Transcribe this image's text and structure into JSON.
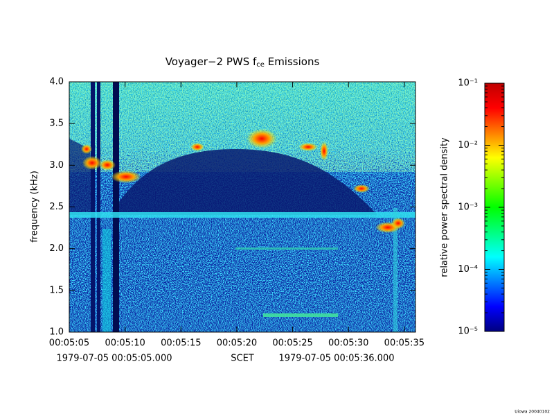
{
  "chart_data": {
    "type": "spectrogram",
    "title": "Voyager−2 PWS f",
    "title_subscript": "ce",
    "title_suffix": " Emissions",
    "y_label": "frequency (kHz)",
    "ylim": [
      1.0,
      4.0
    ],
    "yticks": [
      {
        "value": 1.0,
        "label": "1.0"
      },
      {
        "value": 1.5,
        "label": "1.5"
      },
      {
        "value": 2.0,
        "label": "2.0"
      },
      {
        "value": 2.5,
        "label": "2.5"
      },
      {
        "value": 3.0,
        "label": "3.0"
      },
      {
        "value": 3.5,
        "label": "3.5"
      },
      {
        "value": 4.0,
        "label": "4.0"
      }
    ],
    "xlim": [
      "1979-07-05 00:05:05.000",
      "1979-07-05 00:05:36.000"
    ],
    "x_label": "SCET",
    "xticks": [
      "00:05:05",
      "00:05:10",
      "00:05:15",
      "00:05:20",
      "00:05:25",
      "00:05:30",
      "00:05:35"
    ],
    "colorbar": {
      "label": "relative power spectral density",
      "log_scale": true,
      "lim": [
        1e-05,
        0.1
      ],
      "ticks": [
        {
          "value": 1e-05,
          "label": "10⁻⁵"
        },
        {
          "value": 0.0001,
          "label": "10⁻⁴"
        },
        {
          "value": 0.001,
          "label": "10⁻³"
        },
        {
          "value": 0.01,
          "label": "10⁻²"
        },
        {
          "value": 0.1,
          "label": "10⁻¹"
        }
      ],
      "colors": [
        "#00007f",
        "#0000ff",
        "#007fff",
        "#00ffff",
        "#00ff7f",
        "#00ff00",
        "#7fff00",
        "#ffff00",
        "#ff7f00",
        "#ff0000",
        "#c00000"
      ]
    },
    "footer": "Uiowa 20040102"
  }
}
